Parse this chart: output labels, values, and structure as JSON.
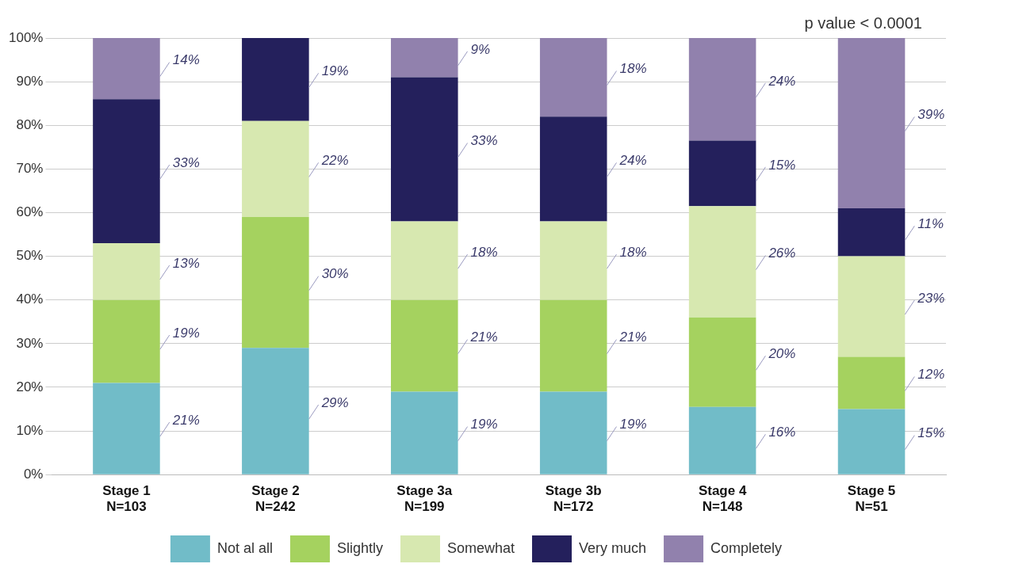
{
  "chart_data": {
    "type": "bar",
    "stacked": true,
    "categories": [
      "Stage 1\nN=103",
      "Stage 2\nN=242",
      "Stage 3a\nN=199",
      "Stage 3b\nN=172",
      "Stage 4\nN=148",
      "Stage 5\nN=51"
    ],
    "series": [
      {
        "name": "Not al all",
        "color": "#71bcc8",
        "values": [
          21,
          29,
          19,
          19,
          15.5,
          15
        ],
        "value_labels": [
          "21%",
          "29%",
          "19%",
          "19%",
          "16%",
          "15%"
        ]
      },
      {
        "name": "Slightly",
        "color": "#a5d25f",
        "values": [
          19,
          30,
          21,
          21,
          20.5,
          12
        ],
        "value_labels": [
          "19%",
          "30%",
          "21%",
          "21%",
          "20%",
          "12%"
        ]
      },
      {
        "name": "Somewhat",
        "color": "#d7e8b0",
        "values": [
          13,
          22,
          18,
          18,
          25.5,
          23
        ],
        "value_labels": [
          "13%",
          "22%",
          "18%",
          "18%",
          "26%",
          "23%"
        ]
      },
      {
        "name": "Very much",
        "color": "#24205c",
        "values": [
          33,
          19,
          33,
          24,
          15,
          11
        ],
        "value_labels": [
          "33%",
          "19%",
          "33%",
          "24%",
          "15%",
          "11%"
        ]
      },
      {
        "name": "Completely",
        "color": "#9181ad",
        "values": [
          14,
          null,
          9,
          18,
          23.5,
          39
        ],
        "value_labels": [
          "14%",
          null,
          "9%",
          "18%",
          "24%",
          "39%"
        ]
      }
    ],
    "ylim": [
      0,
      100
    ],
    "yticks": [
      {
        "value": 0,
        "label": "0%"
      },
      {
        "value": 10,
        "label": "10%"
      },
      {
        "value": 20,
        "label": "20%"
      },
      {
        "value": 30,
        "label": "30%"
      },
      {
        "value": 40,
        "label": "40%"
      },
      {
        "value": 50,
        "label": "50%"
      },
      {
        "value": 60,
        "label": "60%"
      },
      {
        "value": 70,
        "label": "70%"
      },
      {
        "value": 80,
        "label": "80%"
      },
      {
        "value": 90,
        "label": "90%"
      },
      {
        "value": 100,
        "label": "100%"
      }
    ],
    "grid": "y",
    "legend": "bottom",
    "annotations": [
      "p value < 0.0001"
    ]
  }
}
